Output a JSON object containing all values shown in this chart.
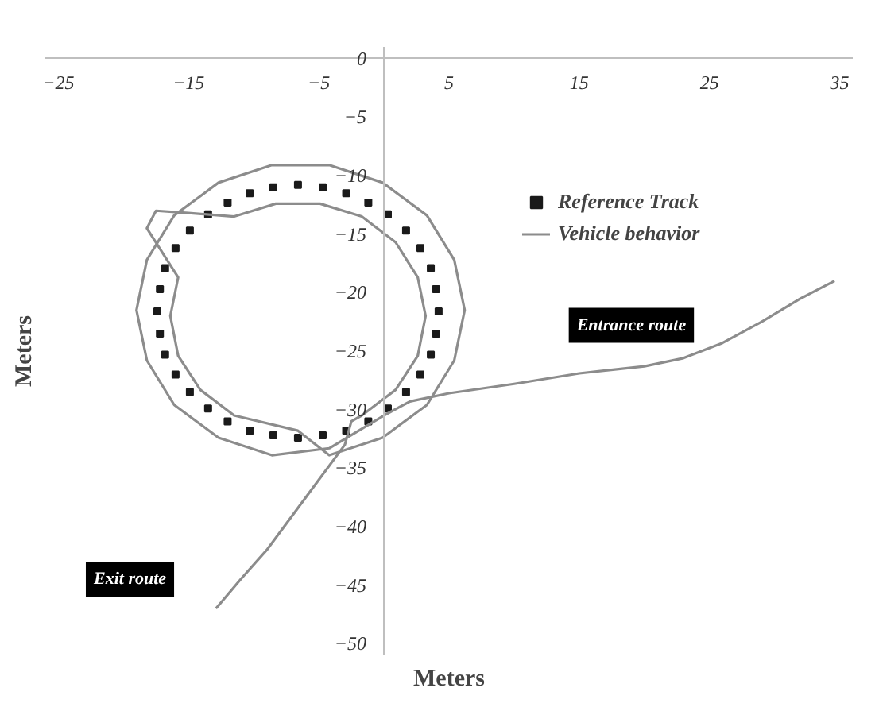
{
  "chart_data": {
    "type": "line",
    "xlabel": "Meters",
    "ylabel": "Meters",
    "xlim": [
      -26,
      36
    ],
    "ylim": [
      -51,
      1
    ],
    "xticks": [
      -25,
      -15,
      -5,
      5,
      15,
      25,
      35
    ],
    "yticks": [
      0,
      -5,
      -10,
      -15,
      -20,
      -25,
      -30,
      -35,
      -40,
      -45,
      -50
    ],
    "legend": "top right",
    "series": [
      {
        "name": "Reference Track",
        "type": "scatter",
        "marker": "square",
        "color": "#1a1a1a",
        "x": [
          4.2,
          4.0,
          3.6,
          2.8,
          1.7,
          0.3,
          -1.2,
          -2.9,
          -4.7,
          -6.6,
          -8.5,
          -10.3,
          -12.0,
          -13.5,
          -14.9,
          -16.0,
          -16.8,
          -17.2,
          -17.4,
          -17.2,
          -16.8,
          -16.0,
          -14.9,
          -13.5,
          -12.0,
          -10.3,
          -8.5,
          -6.6,
          -4.7,
          -2.9,
          -1.2,
          0.3,
          1.7,
          2.8,
          3.6,
          4.0
        ],
        "values": [
          -21.6,
          -19.7,
          -17.9,
          -16.2,
          -14.7,
          -13.3,
          -12.3,
          -11.5,
          -11.0,
          -10.8,
          -11.0,
          -11.5,
          -12.3,
          -13.3,
          -14.7,
          -16.2,
          -17.9,
          -19.7,
          -21.6,
          -23.5,
          -25.3,
          -27.0,
          -28.5,
          -29.9,
          -31.0,
          -31.8,
          -32.2,
          -32.4,
          -32.2,
          -31.8,
          -31.0,
          -29.9,
          -28.5,
          -27.0,
          -25.3,
          -23.5
        ]
      },
      {
        "name": "Vehicle behavior",
        "color": "#8c8c8c",
        "x": [
          34.6,
          32,
          29,
          26,
          23,
          20,
          15,
          10,
          5,
          2,
          0,
          -4.2,
          -8.6,
          -12.7,
          -16.1,
          -18.2,
          -19.0,
          -18.2,
          -16.1,
          -12.7,
          -8.6,
          -4.2,
          -0.1,
          3.3,
          5.4,
          6.2,
          5.4,
          3.3,
          -0.1,
          -4.2,
          -6.6,
          -11.5,
          -14.1,
          -15.8,
          -16.4,
          -15.8,
          -18.2,
          -17.5,
          -15,
          -11.5,
          -8.3,
          -4.9,
          -1.7,
          0.9,
          2.6,
          3.2,
          2.6,
          0.9,
          -1.7,
          -2.5,
          -3,
          -5,
          -7,
          -9,
          -11,
          -12.9
        ],
        "values": [
          -19,
          -20.5,
          -22.5,
          -24.3,
          -25.6,
          -26.3,
          -26.9,
          -27.8,
          -28.6,
          -29.3,
          -30.5,
          -33.3,
          -33.9,
          -32.4,
          -29.6,
          -25.8,
          -21.5,
          -17.2,
          -13.4,
          -10.6,
          -9.1,
          -9.1,
          -10.6,
          -13.4,
          -17.2,
          -21.5,
          -25.8,
          -29.6,
          -32.4,
          -33.9,
          -31.8,
          -30.5,
          -28.3,
          -25.4,
          -22,
          -18.7,
          -14.5,
          -13.0,
          -13.2,
          -13.5,
          -12.4,
          -12.4,
          -13.5,
          -15.7,
          -18.7,
          -22,
          -25.4,
          -28.3,
          -30.5,
          -31,
          -33,
          -36,
          -39,
          -42,
          -44.5,
          -47
        ]
      }
    ],
    "annotations": [
      "Entrance route",
      "Exit route"
    ]
  }
}
